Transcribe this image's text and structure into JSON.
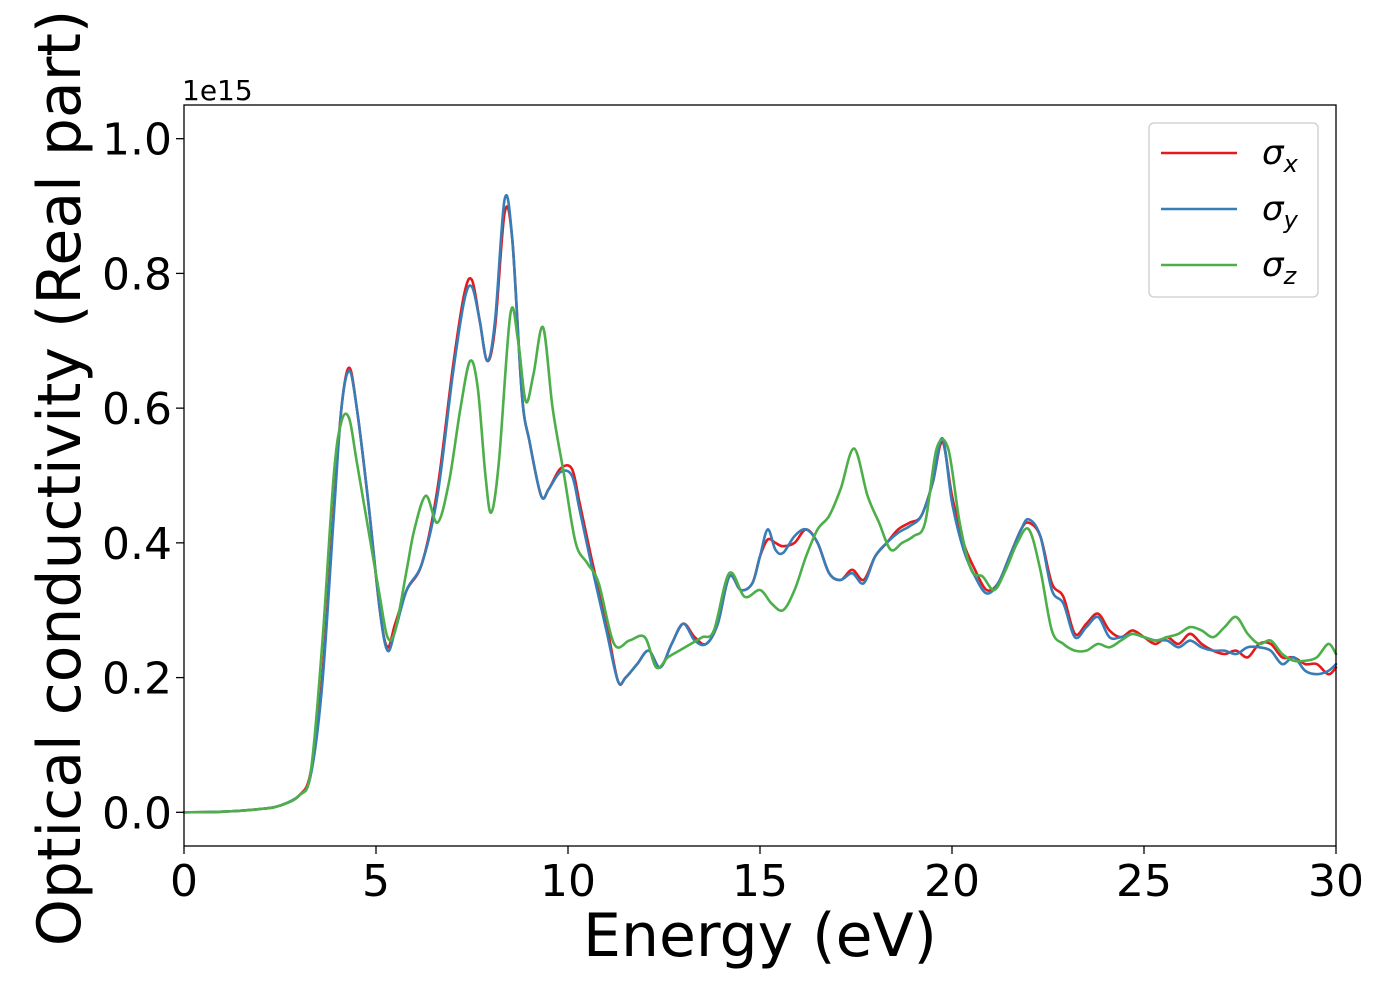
{
  "chart_data": {
    "type": "line",
    "xlabel": "Energy (eV)",
    "ylabel": "Optical conductivity (Real part)",
    "y_offset_label": "1e15",
    "xlim": [
      0,
      30
    ],
    "ylim": [
      -0.05,
      1.05
    ],
    "x_ticks": [
      0,
      5,
      10,
      15,
      20,
      25,
      30
    ],
    "x_tick_labels": [
      "0",
      "5",
      "10",
      "15",
      "20",
      "25",
      "30"
    ],
    "y_ticks": [
      0.0,
      0.2,
      0.4,
      0.6,
      0.8,
      1.0
    ],
    "y_tick_labels": [
      "0.0",
      "0.2",
      "0.4",
      "0.6",
      "0.8",
      "1.0"
    ],
    "grid": false,
    "legend_position": "top-right",
    "series": [
      {
        "name": "σx",
        "legend_base": "σ",
        "legend_sub": "x",
        "color": "#e41a1c",
        "x": [
          0,
          1,
          2,
          2.5,
          3,
          3.3,
          3.6,
          3.9,
          4.1,
          4.3,
          4.5,
          4.8,
          5.1,
          5.3,
          5.5,
          5.8,
          6.2,
          6.6,
          7.0,
          7.3,
          7.5,
          7.7,
          7.9,
          8.1,
          8.35,
          8.55,
          8.8,
          9.0,
          9.3,
          9.5,
          9.8,
          10.1,
          10.3,
          10.6,
          11.0,
          11.3,
          11.5,
          11.8,
          12.1,
          12.4,
          12.7,
          13.0,
          13.3,
          13.6,
          13.9,
          14.2,
          14.5,
          14.8,
          15.0,
          15.2,
          15.4,
          15.6,
          15.9,
          16.2,
          16.5,
          16.8,
          17.1,
          17.4,
          17.7,
          18.0,
          18.3,
          18.6,
          18.9,
          19.2,
          19.5,
          19.75,
          20.0,
          20.3,
          20.6,
          20.9,
          21.2,
          21.5,
          21.8,
          22.0,
          22.3,
          22.6,
          22.9,
          23.2,
          23.5,
          23.8,
          24.1,
          24.4,
          24.7,
          25.0,
          25.3,
          25.6,
          25.9,
          26.2,
          26.5,
          26.8,
          27.1,
          27.4,
          27.7,
          28.0,
          28.3,
          28.6,
          28.9,
          29.2,
          29.5,
          29.8,
          30.0
        ],
        "values": [
          0.0,
          0.001,
          0.005,
          0.01,
          0.025,
          0.06,
          0.2,
          0.45,
          0.6,
          0.66,
          0.6,
          0.46,
          0.3,
          0.245,
          0.28,
          0.33,
          0.37,
          0.48,
          0.66,
          0.77,
          0.79,
          0.73,
          0.67,
          0.72,
          0.89,
          0.85,
          0.62,
          0.55,
          0.47,
          0.48,
          0.51,
          0.51,
          0.46,
          0.38,
          0.28,
          0.195,
          0.2,
          0.22,
          0.24,
          0.215,
          0.25,
          0.28,
          0.26,
          0.25,
          0.28,
          0.35,
          0.33,
          0.34,
          0.38,
          0.405,
          0.4,
          0.395,
          0.4,
          0.42,
          0.4,
          0.355,
          0.345,
          0.36,
          0.345,
          0.38,
          0.4,
          0.42,
          0.43,
          0.44,
          0.49,
          0.55,
          0.47,
          0.4,
          0.36,
          0.33,
          0.34,
          0.38,
          0.42,
          0.43,
          0.41,
          0.34,
          0.32,
          0.265,
          0.28,
          0.295,
          0.27,
          0.26,
          0.27,
          0.26,
          0.25,
          0.26,
          0.25,
          0.265,
          0.25,
          0.24,
          0.235,
          0.24,
          0.23,
          0.25,
          0.25,
          0.23,
          0.23,
          0.22,
          0.22,
          0.205,
          0.215
        ]
      },
      {
        "name": "σy",
        "legend_base": "σ",
        "legend_sub": "y",
        "color": "#377eb8",
        "x": [
          0,
          1,
          2,
          2.5,
          3,
          3.3,
          3.6,
          3.9,
          4.1,
          4.3,
          4.5,
          4.8,
          5.1,
          5.3,
          5.5,
          5.8,
          6.2,
          6.6,
          7.0,
          7.3,
          7.5,
          7.7,
          7.9,
          8.1,
          8.35,
          8.55,
          8.8,
          9.0,
          9.3,
          9.5,
          9.8,
          10.1,
          10.3,
          10.6,
          11.0,
          11.3,
          11.5,
          11.8,
          12.1,
          12.4,
          12.7,
          13.0,
          13.3,
          13.6,
          13.9,
          14.2,
          14.5,
          14.8,
          15.0,
          15.2,
          15.4,
          15.6,
          15.9,
          16.2,
          16.5,
          16.8,
          17.1,
          17.4,
          17.7,
          18.0,
          18.3,
          18.6,
          18.9,
          19.2,
          19.5,
          19.75,
          20.0,
          20.3,
          20.6,
          20.9,
          21.2,
          21.5,
          21.8,
          22.0,
          22.3,
          22.6,
          22.9,
          23.2,
          23.5,
          23.8,
          24.1,
          24.4,
          24.7,
          25.0,
          25.3,
          25.6,
          25.9,
          26.2,
          26.5,
          26.8,
          27.1,
          27.4,
          27.7,
          28.0,
          28.3,
          28.6,
          28.9,
          29.2,
          29.5,
          29.8,
          30.0
        ],
        "values": [
          0.0,
          0.001,
          0.005,
          0.01,
          0.025,
          0.055,
          0.19,
          0.44,
          0.6,
          0.655,
          0.6,
          0.46,
          0.3,
          0.24,
          0.27,
          0.33,
          0.37,
          0.47,
          0.65,
          0.76,
          0.78,
          0.73,
          0.67,
          0.73,
          0.91,
          0.85,
          0.62,
          0.55,
          0.47,
          0.48,
          0.505,
          0.5,
          0.45,
          0.37,
          0.27,
          0.195,
          0.2,
          0.22,
          0.24,
          0.215,
          0.25,
          0.28,
          0.255,
          0.25,
          0.28,
          0.35,
          0.33,
          0.34,
          0.38,
          0.42,
          0.39,
          0.385,
          0.41,
          0.42,
          0.4,
          0.355,
          0.345,
          0.355,
          0.34,
          0.38,
          0.4,
          0.415,
          0.425,
          0.44,
          0.49,
          0.555,
          0.46,
          0.39,
          0.35,
          0.325,
          0.34,
          0.38,
          0.42,
          0.435,
          0.41,
          0.33,
          0.31,
          0.26,
          0.275,
          0.29,
          0.26,
          0.26,
          0.265,
          0.26,
          0.255,
          0.255,
          0.245,
          0.255,
          0.245,
          0.24,
          0.24,
          0.235,
          0.245,
          0.245,
          0.24,
          0.22,
          0.23,
          0.21,
          0.205,
          0.21,
          0.22
        ]
      },
      {
        "name": "σz",
        "legend_base": "σ",
        "legend_sub": "z",
        "color": "#4daf4a",
        "x": [
          0,
          1,
          2,
          2.5,
          3,
          3.3,
          3.6,
          3.9,
          4.1,
          4.3,
          4.5,
          4.8,
          5.1,
          5.3,
          5.5,
          5.8,
          6.0,
          6.3,
          6.6,
          6.9,
          7.2,
          7.45,
          7.65,
          7.85,
          8.0,
          8.2,
          8.5,
          8.7,
          8.9,
          9.1,
          9.35,
          9.6,
          9.9,
          10.2,
          10.5,
          10.8,
          11.2,
          11.6,
          12.0,
          12.3,
          12.6,
          12.9,
          13.2,
          13.5,
          13.8,
          14.2,
          14.6,
          15.0,
          15.3,
          15.6,
          15.9,
          16.2,
          16.5,
          16.8,
          17.1,
          17.45,
          17.8,
          18.1,
          18.4,
          18.7,
          19.0,
          19.3,
          19.6,
          19.9,
          20.2,
          20.5,
          20.8,
          21.1,
          21.4,
          21.7,
          22.0,
          22.3,
          22.6,
          22.9,
          23.2,
          23.5,
          23.8,
          24.1,
          24.4,
          24.7,
          25.0,
          25.3,
          25.6,
          25.9,
          26.2,
          26.5,
          26.8,
          27.1,
          27.4,
          27.7,
          28.0,
          28.3,
          28.6,
          28.9,
          29.2,
          29.5,
          29.8,
          30.0
        ],
        "values": [
          0.0,
          0.001,
          0.005,
          0.01,
          0.025,
          0.06,
          0.25,
          0.5,
          0.58,
          0.585,
          0.52,
          0.42,
          0.32,
          0.26,
          0.27,
          0.36,
          0.42,
          0.47,
          0.43,
          0.49,
          0.6,
          0.67,
          0.63,
          0.5,
          0.445,
          0.52,
          0.74,
          0.7,
          0.61,
          0.65,
          0.72,
          0.6,
          0.5,
          0.4,
          0.37,
          0.34,
          0.25,
          0.255,
          0.26,
          0.215,
          0.23,
          0.24,
          0.25,
          0.26,
          0.27,
          0.355,
          0.32,
          0.33,
          0.31,
          0.3,
          0.33,
          0.38,
          0.42,
          0.44,
          0.48,
          0.54,
          0.47,
          0.43,
          0.39,
          0.4,
          0.41,
          0.43,
          0.54,
          0.54,
          0.43,
          0.36,
          0.35,
          0.33,
          0.36,
          0.4,
          0.42,
          0.36,
          0.27,
          0.25,
          0.24,
          0.24,
          0.25,
          0.245,
          0.255,
          0.265,
          0.26,
          0.255,
          0.26,
          0.265,
          0.275,
          0.27,
          0.26,
          0.275,
          0.29,
          0.265,
          0.25,
          0.255,
          0.235,
          0.225,
          0.225,
          0.23,
          0.25,
          0.235
        ]
      }
    ]
  }
}
